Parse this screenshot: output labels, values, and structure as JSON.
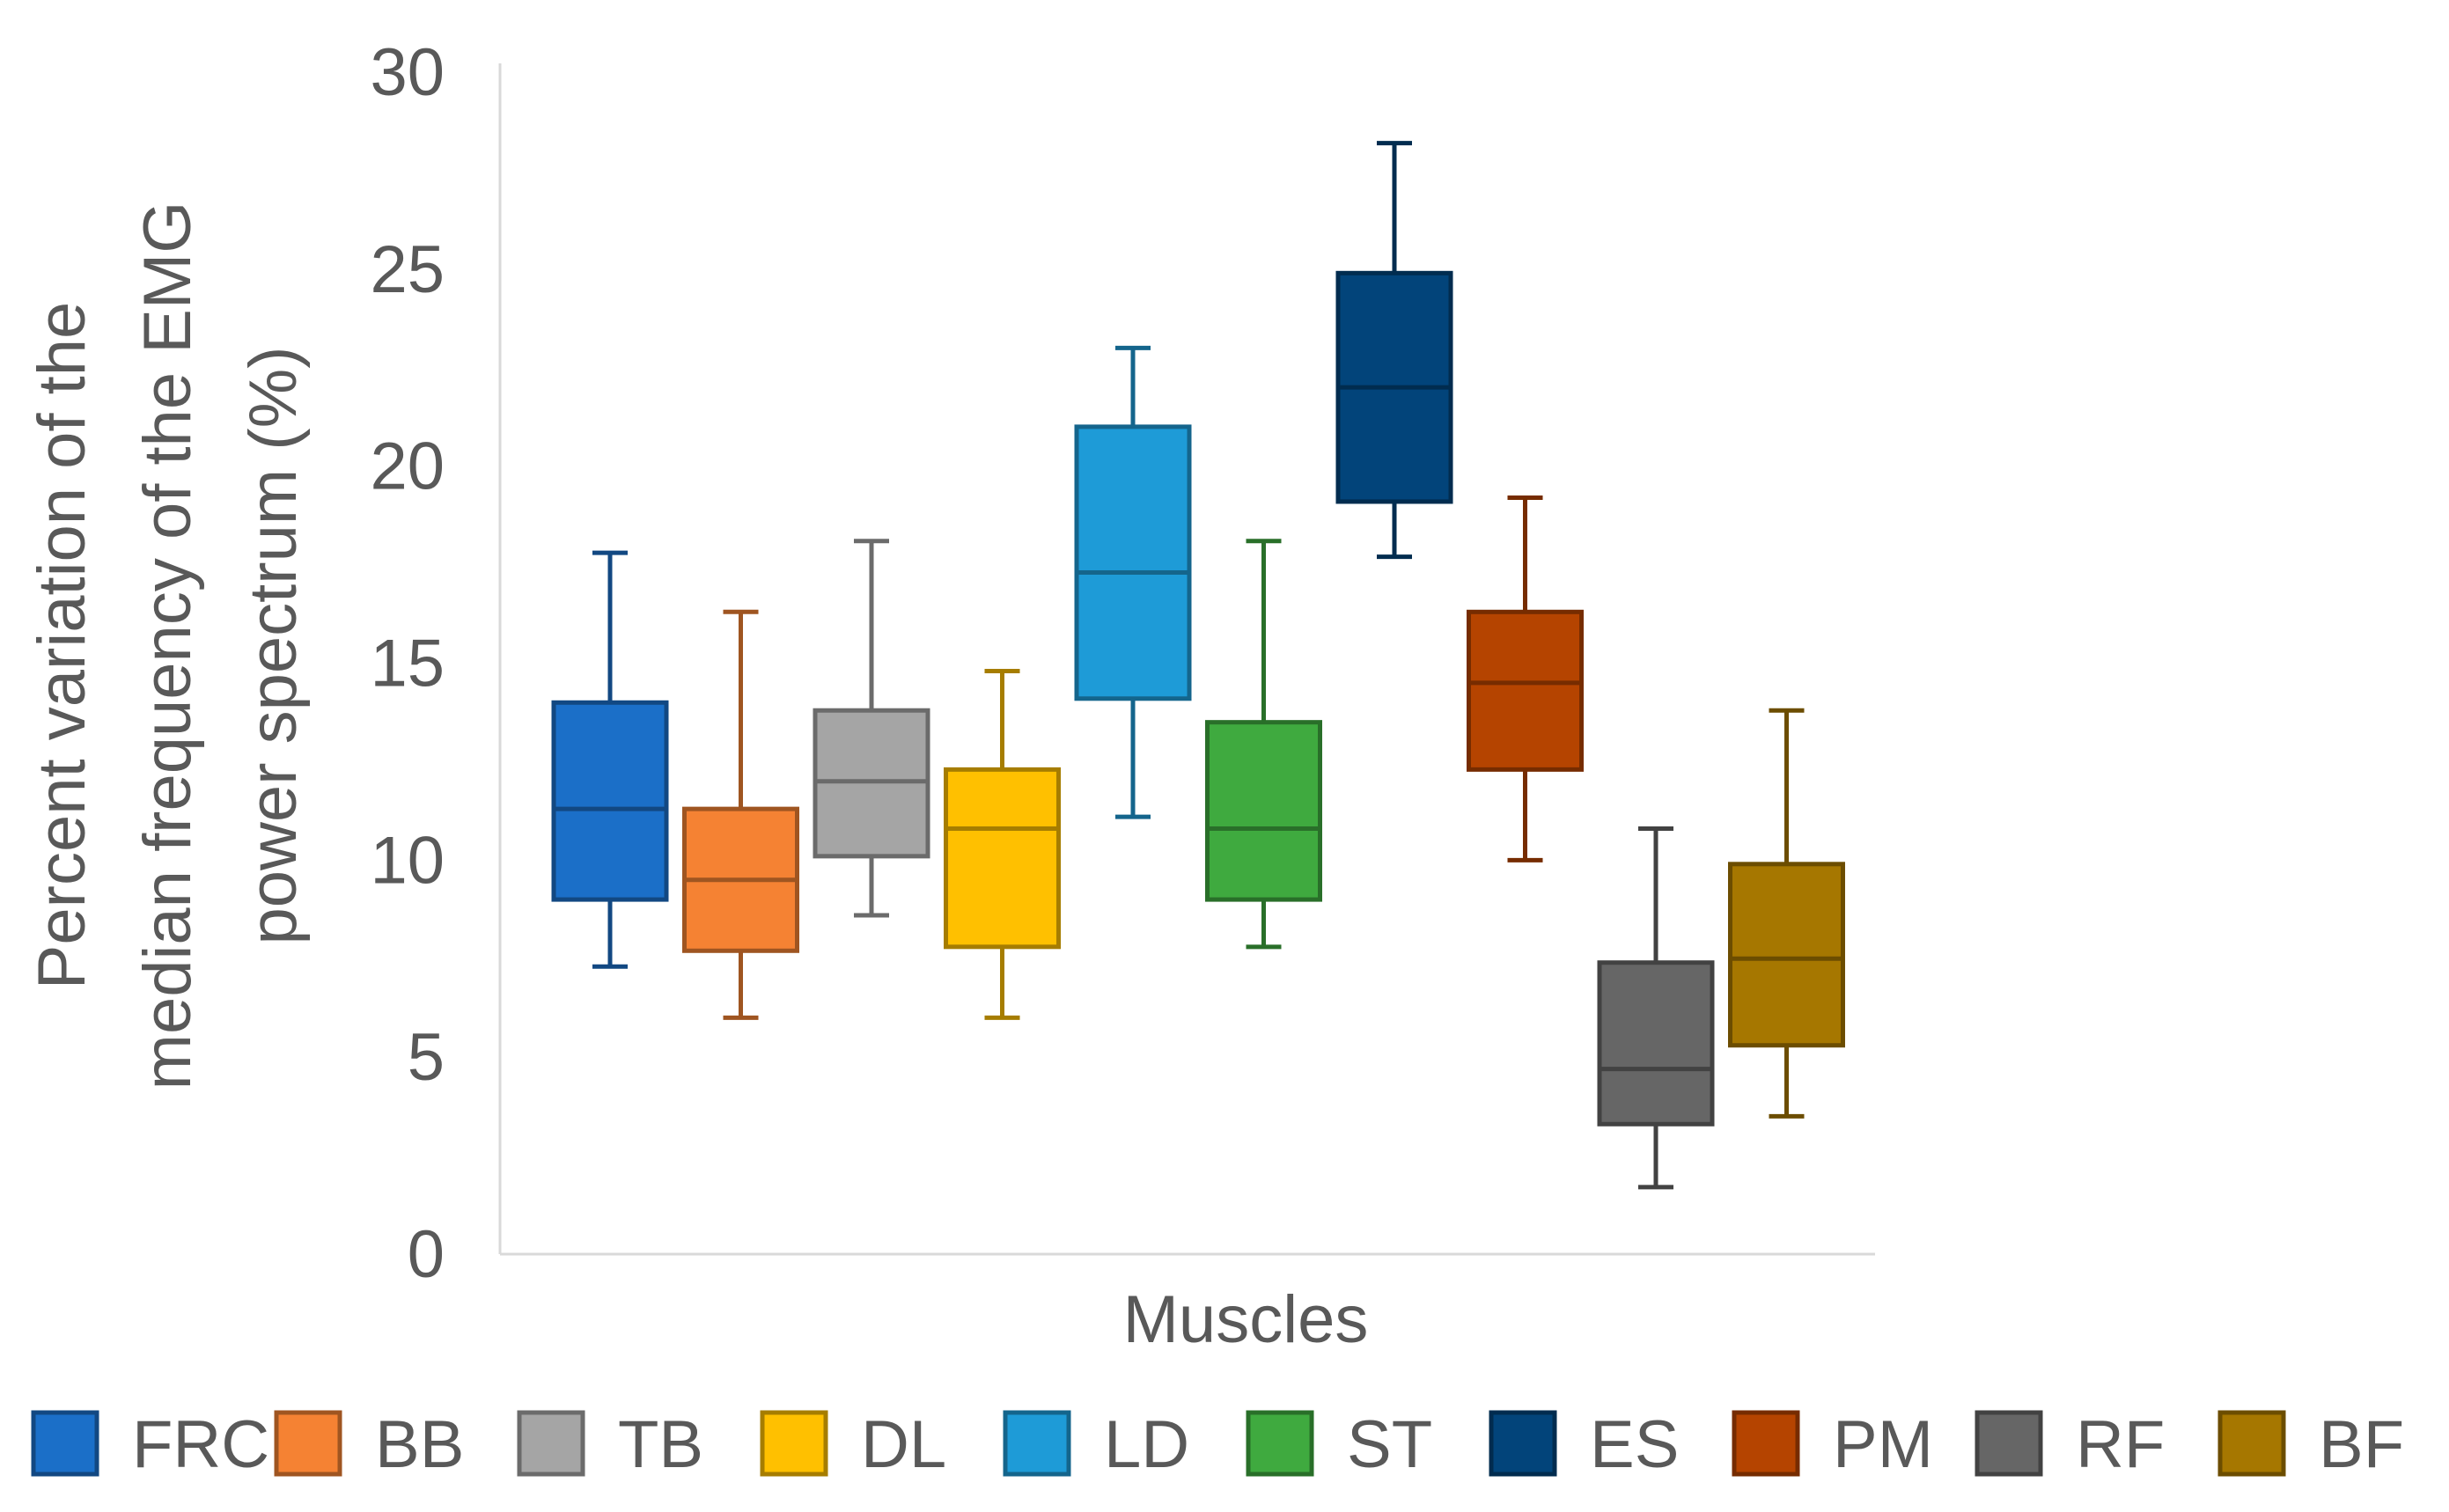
{
  "chart_data": {
    "type": "box",
    "title": "",
    "xlabel": "Muscles",
    "ylabel_lines": [
      "Percent variation of the",
      "median frequency of the EMG",
      "power spectrum (%)"
    ],
    "ylim": [
      0,
      30
    ],
    "yticks": [
      0,
      5,
      10,
      15,
      20,
      25,
      30
    ],
    "ytick_labels": [
      "0",
      "5",
      "10",
      "15",
      "20",
      "25",
      "30"
    ],
    "grid": false,
    "legend_position": "bottom",
    "series": [
      {
        "name": "FRC",
        "color": "#1B6FC8",
        "whisker_low": 7.3,
        "q1": 9.0,
        "median": 11.3,
        "q3": 14.0,
        "whisker_high": 17.8
      },
      {
        "name": "BB",
        "color": "#F58233",
        "whisker_low": 6.0,
        "q1": 7.7,
        "median": 9.5,
        "q3": 11.3,
        "whisker_high": 16.3
      },
      {
        "name": "TB",
        "color": "#A5A5A5",
        "whisker_low": 8.6,
        "q1": 10.1,
        "median": 12.0,
        "q3": 13.8,
        "whisker_high": 18.1
      },
      {
        "name": "DL",
        "color": "#FFC000",
        "whisker_low": 6.0,
        "q1": 7.8,
        "median": 10.8,
        "q3": 12.3,
        "whisker_high": 14.8
      },
      {
        "name": "LD",
        "color": "#1E9BD7",
        "whisker_low": 11.1,
        "q1": 14.1,
        "median": 17.3,
        "q3": 21.0,
        "whisker_high": 23.0
      },
      {
        "name": "ST",
        "color": "#3FAA3F",
        "whisker_low": 7.8,
        "q1": 9.0,
        "median": 10.8,
        "q3": 13.5,
        "whisker_high": 18.1
      },
      {
        "name": "ES",
        "color": "#02447A",
        "whisker_low": 17.7,
        "q1": 19.1,
        "median": 22.0,
        "q3": 24.9,
        "whisker_high": 28.2
      },
      {
        "name": "PM",
        "color": "#B54400",
        "whisker_low": 10.0,
        "q1": 12.3,
        "median": 14.5,
        "q3": 16.3,
        "whisker_high": 19.2
      },
      {
        "name": "RF",
        "color": "#666666",
        "whisker_low": 1.7,
        "q1": 3.3,
        "median": 4.7,
        "q3": 7.4,
        "whisker_high": 10.8
      },
      {
        "name": "BF",
        "color": "#A67700",
        "whisker_low": 3.5,
        "q1": 5.3,
        "median": 7.5,
        "q3": 9.9,
        "whisker_high": 13.8
      }
    ]
  }
}
